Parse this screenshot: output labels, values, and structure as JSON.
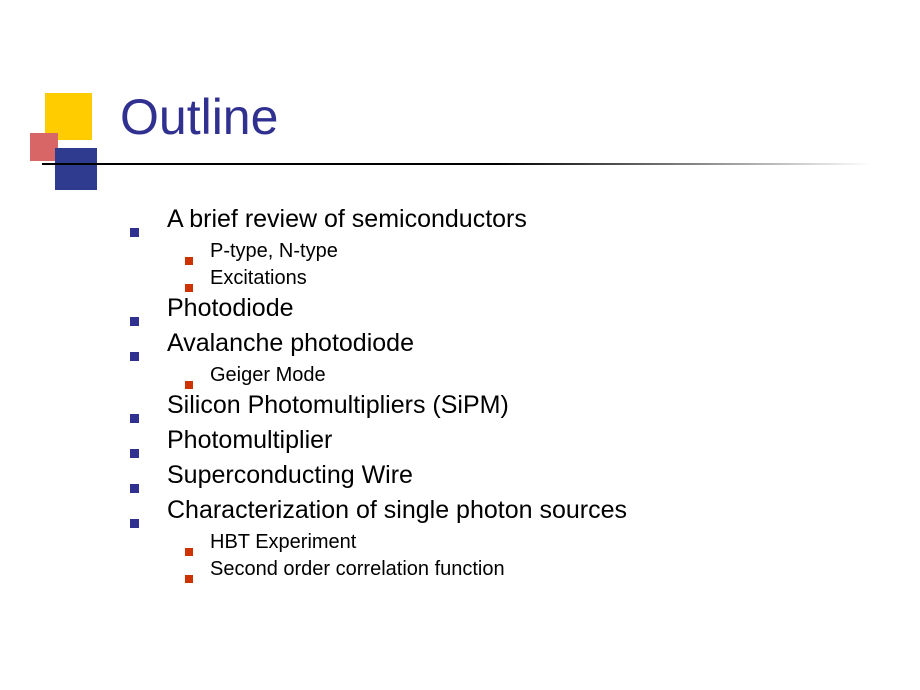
{
  "title": "Outline",
  "colors": {
    "title_color": "#303090",
    "bullet_l1": "#303090",
    "bullet_l2": "#cc3300",
    "decor_yellow": "#ffcc00",
    "decor_red": "#d96666",
    "decor_blue": "#2e3b8f",
    "background": "#ffffff",
    "text": "#000000"
  },
  "typography": {
    "title_fontsize": 50,
    "level1_fontsize": 25,
    "level2_fontsize": 20,
    "font_family": "Verdana"
  },
  "items": [
    {
      "text": "A brief review of semiconductors",
      "sub": [
        "P-type, N-type",
        "Excitations"
      ]
    },
    {
      "text": "Photodiode",
      "sub": []
    },
    {
      "text": "Avalanche photodiode",
      "sub": [
        "Geiger Mode"
      ]
    },
    {
      "text": "Silicon Photomultipliers (SiPM)",
      "sub": []
    },
    {
      "text": "Photomultiplier",
      "sub": []
    },
    {
      "text": "Superconducting Wire",
      "sub": []
    },
    {
      "text": "Characterization of single photon sources",
      "sub": [
        "HBT Experiment",
        "Second order correlation function"
      ]
    }
  ]
}
